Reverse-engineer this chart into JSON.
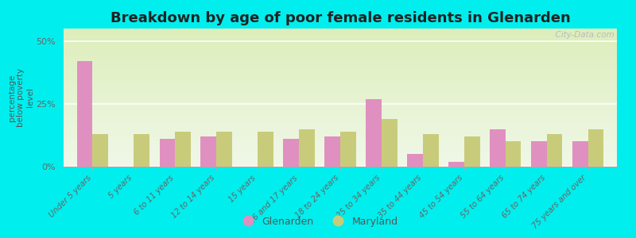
{
  "title": "Breakdown by age of poor female residents in Glenarden",
  "ylabel": "percentage\nbelow poverty\nlevel",
  "categories": [
    "Under 5 years",
    "5 years",
    "6 to 11 years",
    "12 to 14 years",
    "15 years",
    "16 and 17 years",
    "18 to 24 years",
    "25 to 34 years",
    "35 to 44 years",
    "45 to 54 years",
    "55 to 64 years",
    "65 to 74 years",
    "75 years and over"
  ],
  "glenarden": [
    42,
    0,
    11,
    12,
    0,
    11,
    12,
    27,
    5,
    2,
    15,
    10,
    10
  ],
  "maryland": [
    13,
    13,
    14,
    14,
    14,
    15,
    14,
    19,
    13,
    12,
    10,
    13,
    15
  ],
  "glenarden_color": "#e090c0",
  "maryland_color": "#c8cc7a",
  "background_color": "#00eeee",
  "ylim": [
    0,
    55
  ],
  "yticks": [
    0,
    25,
    50
  ],
  "ytick_labels": [
    "0%",
    "25%",
    "50%"
  ],
  "bar_width": 0.38,
  "title_fontsize": 13,
  "legend_labels": [
    "Glenarden",
    "Maryland"
  ],
  "watermark": "  City-Data.com"
}
